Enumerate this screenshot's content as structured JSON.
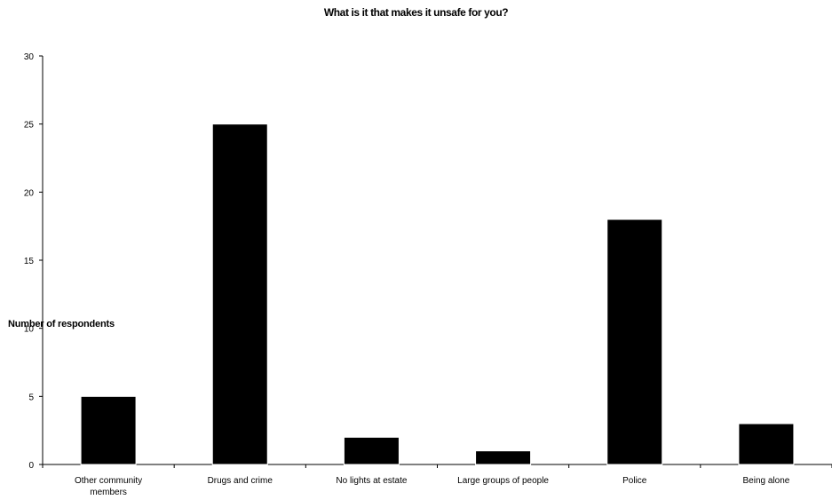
{
  "chart_data": {
    "type": "bar",
    "title": "What is it that makes it unsafe for you?",
    "ylabel": "Number of respondents",
    "xlabel": "",
    "categories": [
      "Other community members",
      "Drugs and crime",
      "No lights at estate",
      "Large groups of people",
      "Police",
      "Being alone"
    ],
    "values": [
      5,
      25,
      2,
      1,
      18,
      3
    ],
    "ylim": [
      0,
      30
    ],
    "yticks": [
      0,
      5,
      10,
      15,
      20,
      25,
      30
    ],
    "grid": false,
    "legend": "none",
    "bar_color": "#000000"
  }
}
